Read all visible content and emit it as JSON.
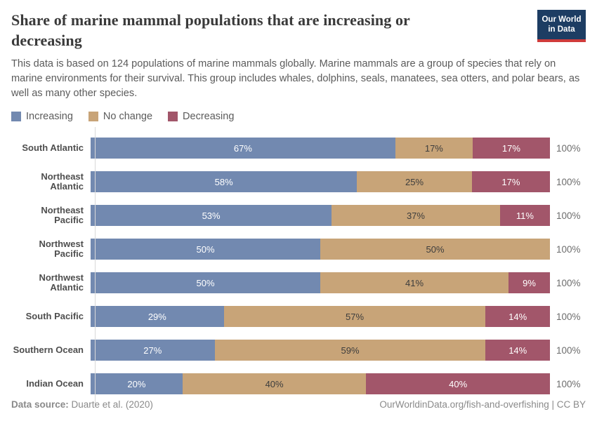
{
  "header": {
    "title": "Share of marine mammal populations that are increasing or decreasing",
    "logo": {
      "line1": "Our World",
      "line2": "in Data"
    }
  },
  "subtitle": "This data is based on 124 populations of marine mammals globally. Marine mammals are a group of species that rely on marine environments for their survival. This group includes whales, dolphins, seals, manatees, sea otters, and polar bears, as well as many other species.",
  "chart_data": {
    "type": "bar",
    "stacked": true,
    "orientation": "horizontal",
    "xlim": [
      0,
      100
    ],
    "value_suffix": "%",
    "total_label": "100%",
    "grid": false,
    "legend_position": "top-left",
    "categories": [
      "South Atlantic",
      "Northeast Atlantic",
      "Northeast Pacific",
      "Northwest Pacific",
      "Northwest Atlantic",
      "South Pacific",
      "Southern Ocean",
      "Indian Ocean"
    ],
    "series": [
      {
        "name": "Increasing",
        "color": "#7289b0",
        "label_color": "#ffffff",
        "values": [
          67,
          58,
          53,
          50,
          50,
          29,
          27,
          20
        ]
      },
      {
        "name": "No change",
        "color": "#c8a478",
        "label_color": "#3d3d3d",
        "values": [
          17,
          25,
          37,
          50,
          41,
          57,
          59,
          40
        ]
      },
      {
        "name": "Decreasing",
        "color": "#a2566a",
        "label_color": "#ffffff",
        "values": [
          17,
          17,
          11,
          0,
          9,
          14,
          14,
          40
        ]
      }
    ]
  },
  "footer": {
    "datasource_label": "Data source:",
    "datasource_value": " Duarte et al. (2020)",
    "credit": "OurWorldinData.org/fish-and-overfishing | CC BY"
  }
}
